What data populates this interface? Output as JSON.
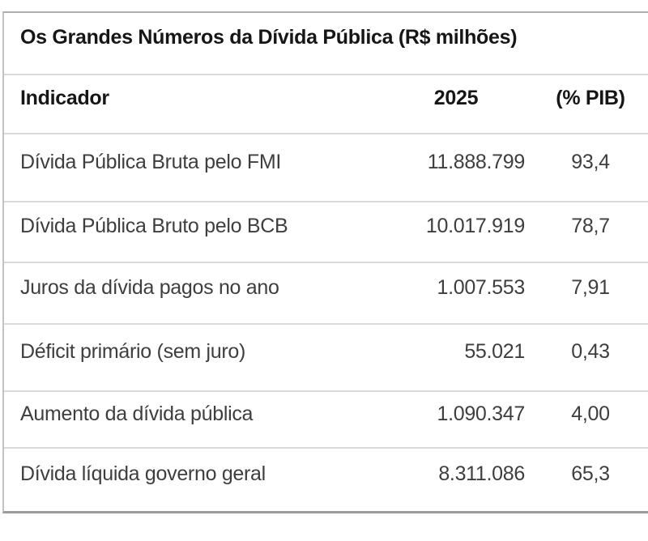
{
  "table": {
    "title": "Os Grandes Números da Dívida Pública (R$ milhões)",
    "columns": {
      "indicator": "Indicador",
      "year": "2025",
      "pib": "(% PIB)"
    },
    "rows": [
      {
        "label": "Dívida Pública Bruta pelo FMI",
        "value": "11.888.799",
        "pib": "93,4"
      },
      {
        "label": "Dívida Pública Bruto pelo BCB",
        "value": "10.017.919",
        "pib": "78,7"
      },
      {
        "label": "Juros da dívida pagos no ano",
        "value": "1.007.553",
        "pib": "7,91"
      },
      {
        "label": "Déficit primário (sem juro)",
        "value": "55.021",
        "pib": "0,43"
      },
      {
        "label": "Aumento da dívida pública",
        "value": "1.090.347",
        "pib": "4,00"
      },
      {
        "label": "Dívida líquida governo geral",
        "value": "8.311.086",
        "pib": "65,3"
      }
    ]
  },
  "chart_data": {
    "type": "table",
    "title": "Os Grandes Números da Dívida Pública (R$ milhões)",
    "columns": [
      "Indicador",
      "2025",
      "(% PIB)"
    ],
    "rows": [
      [
        "Dívida Pública Bruta pelo FMI",
        "11.888.799",
        "93,4"
      ],
      [
        "Dívida Pública Bruto pelo BCB",
        "10.017.919",
        "78,7"
      ],
      [
        "Juros da dívida pagos no ano",
        "1.007.553",
        "7,91"
      ],
      [
        "Déficit primário (sem juro)",
        "55.021",
        "0,43"
      ],
      [
        "Aumento da dívida pública",
        "1.090.347",
        "4,00"
      ],
      [
        "Dívida líquida governo geral",
        "8.311.086",
        "65,3"
      ]
    ],
    "values_numeric": {
      "2025_rs_milhoes": [
        11888799,
        10017919,
        1007553,
        55021,
        1090347,
        8311086
      ],
      "pct_pib": [
        93.4,
        78.7,
        7.91,
        0.43,
        4.0,
        65.3
      ]
    }
  }
}
